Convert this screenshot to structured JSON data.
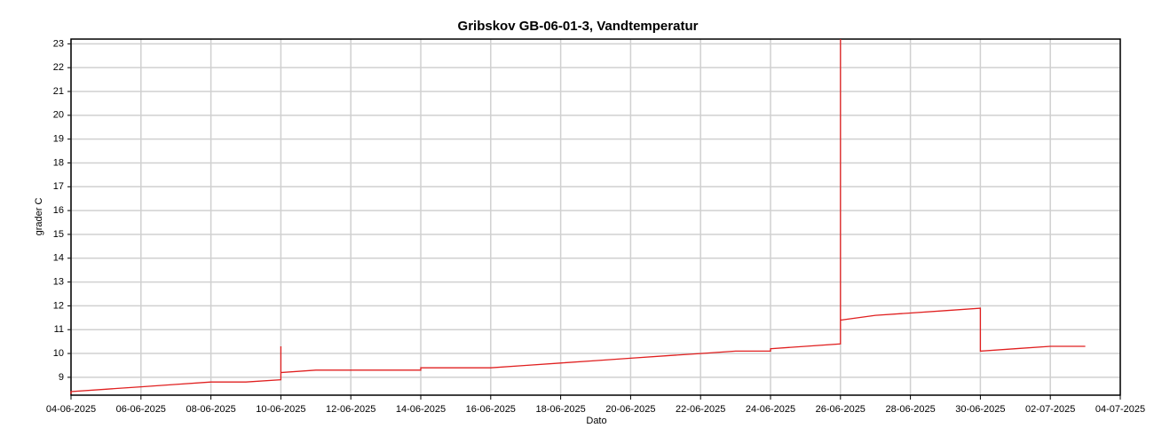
{
  "chart_data": {
    "type": "line",
    "title": "Gribskov GB-06-01-3, Vandtemperatur",
    "x_label": "Dato",
    "y_label": "grader C",
    "x": [
      "04-06-2025",
      "04-06-2025",
      "05-06-2025",
      "06-06-2025",
      "07-06-2025",
      "08-06-2025",
      "09-06-2025",
      "10-06-2025",
      "10-06-2025",
      "10-06-2025",
      "11-06-2025",
      "12-06-2025",
      "13-06-2025",
      "14-06-2025",
      "14-06-2025",
      "15-06-2025",
      "16-06-2025",
      "17-06-2025",
      "18-06-2025",
      "19-06-2025",
      "20-06-2025",
      "21-06-2025",
      "22-06-2025",
      "23-06-2025",
      "24-06-2025",
      "24-06-2025",
      "25-06-2025",
      "26-06-2025",
      "26-06-2025",
      "26-06-2025",
      "26-06-2025",
      "27-06-2025",
      "28-06-2025",
      "29-06-2025",
      "30-06-2025",
      "30-06-2025",
      "30-06-2025",
      "01-07-2025",
      "02-07-2025",
      "03-07-2025"
    ],
    "series": [
      {
        "name": "Vandtemperatur",
        "color": "#e02020",
        "values": [
          8.3,
          8.4,
          8.5,
          8.6,
          8.7,
          8.8,
          8.8,
          8.9,
          10.3,
          9.2,
          9.3,
          9.3,
          9.3,
          9.3,
          9.4,
          9.4,
          9.4,
          9.5,
          9.6,
          9.7,
          9.8,
          9.9,
          10.0,
          10.1,
          10.1,
          10.2,
          10.3,
          10.4,
          23.2,
          12.0,
          11.4,
          11.6,
          11.7,
          11.8,
          11.9,
          10.4,
          10.1,
          10.2,
          10.3,
          10.3
        ]
      }
    ],
    "xlim": [
      "04-06-2025",
      "04-07-2025"
    ],
    "xticks": [
      "04-06-2025",
      "06-06-2025",
      "08-06-2025",
      "10-06-2025",
      "12-06-2025",
      "14-06-2025",
      "16-06-2025",
      "18-06-2025",
      "20-06-2025",
      "22-06-2025",
      "24-06-2025",
      "26-06-2025",
      "28-06-2025",
      "30-06-2025",
      "02-07-2025",
      "04-07-2025"
    ],
    "ylim": [
      8.25,
      23.2
    ],
    "yticks": [
      9,
      10,
      11,
      12,
      13,
      14,
      15,
      16,
      17,
      18,
      19,
      20,
      21,
      22,
      23
    ],
    "grid": true
  }
}
